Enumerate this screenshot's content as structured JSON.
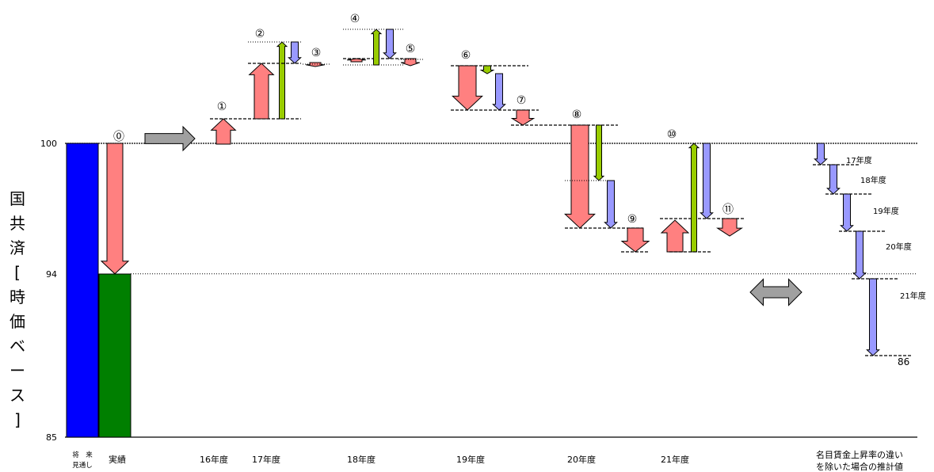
{
  "chart_data": {
    "type": "bar",
    "ylabel": [
      "国",
      "共",
      "済",
      "[",
      "時",
      "価",
      "ベ",
      "ー",
      "ス",
      "]"
    ],
    "ylim": [
      85,
      101
    ],
    "y_ticks": [
      "100",
      "94",
      "85"
    ],
    "categories": [
      {
        "key": "base_forecast",
        "label_lines": [
          "将　来",
          "見通し"
        ]
      },
      {
        "key": "actual",
        "label_lines": [
          "実績"
        ]
      },
      {
        "key": "fy16",
        "label_lines": [
          "16年度"
        ]
      },
      {
        "key": "fy17",
        "label_lines": [
          "17年度"
        ]
      },
      {
        "key": "fy18",
        "label_lines": [
          "18年度"
        ]
      },
      {
        "key": "fy19",
        "label_lines": [
          "19年度"
        ]
      },
      {
        "key": "fy20",
        "label_lines": [
          "20年度"
        ]
      },
      {
        "key": "fy21",
        "label_lines": [
          "21年度"
        ]
      },
      {
        "key": "nominal",
        "label_lines": [
          "名目賃金上昇率の違い",
          "を除いた場合の推計値"
        ]
      }
    ],
    "bars": [
      {
        "name": "将来見通し",
        "from": 85,
        "to": 100,
        "color": "#0000FF"
      },
      {
        "name": "実績",
        "from": 85,
        "to": 94,
        "color": "#007F00"
      },
      {
        "name": "推計値",
        "from": 85,
        "to": 86,
        "color": "#FF0000"
      }
    ],
    "step_markers": [
      "⓪",
      "①",
      "②",
      "③",
      "④",
      "⑤",
      "⑥",
      "⑦",
      "⑧",
      "⑨",
      "⑩",
      "⑪"
    ],
    "value_label": "86",
    "fiscal_year_labels": [
      "17年度",
      "18年度",
      "19年度",
      "20年度",
      "21年度"
    ],
    "colors": {
      "pink": "#FF8080",
      "green": "#99CC00",
      "lavender": "#9999FF",
      "gray": "#A0A0A0",
      "stroke": "#000000"
    }
  }
}
